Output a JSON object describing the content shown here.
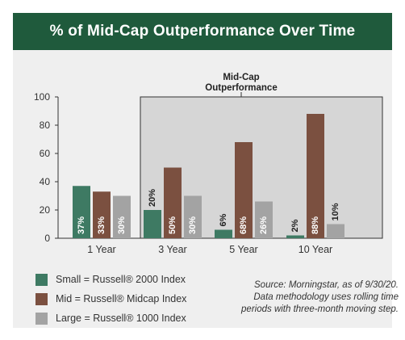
{
  "header": {
    "title": "% of Mid-Cap Outperformance Over Time"
  },
  "highlight": {
    "label_line1": "Mid-Cap",
    "label_line2": "Outperformance"
  },
  "chart_data": {
    "type": "bar",
    "title": "% of Mid-Cap Outperformance Over Time",
    "categories": [
      "1 Year",
      "3 Year",
      "5 Year",
      "10 Year"
    ],
    "series": [
      {
        "name": "Small = Russell® 2000 Index",
        "values": [
          37,
          20,
          6,
          2
        ],
        "labels": [
          "37%",
          "20%",
          "6%",
          "2%"
        ],
        "color": "#3e7a63"
      },
      {
        "name": "Mid = Russell® Midcap Index",
        "values": [
          33,
          50,
          68,
          88
        ],
        "labels": [
          "33%",
          "50%",
          "68%",
          "88%"
        ],
        "color": "#7b5040"
      },
      {
        "name": "Large = Russell® 1000 Index",
        "values": [
          30,
          30,
          26,
          10
        ],
        "labels": [
          "30%",
          "30%",
          "26%",
          "10%"
        ],
        "color": "#a3a3a3"
      }
    ],
    "ylim": [
      0,
      100
    ],
    "yticks": [
      "0",
      "20",
      "40",
      "60",
      "80",
      "100"
    ],
    "grid": false,
    "legend": "bottom-left"
  },
  "source": {
    "line1": "Source: Morningstar, as of 9/30/20.",
    "line2": "Data methodology uses rolling time",
    "line3": "periods with three-month moving step."
  }
}
